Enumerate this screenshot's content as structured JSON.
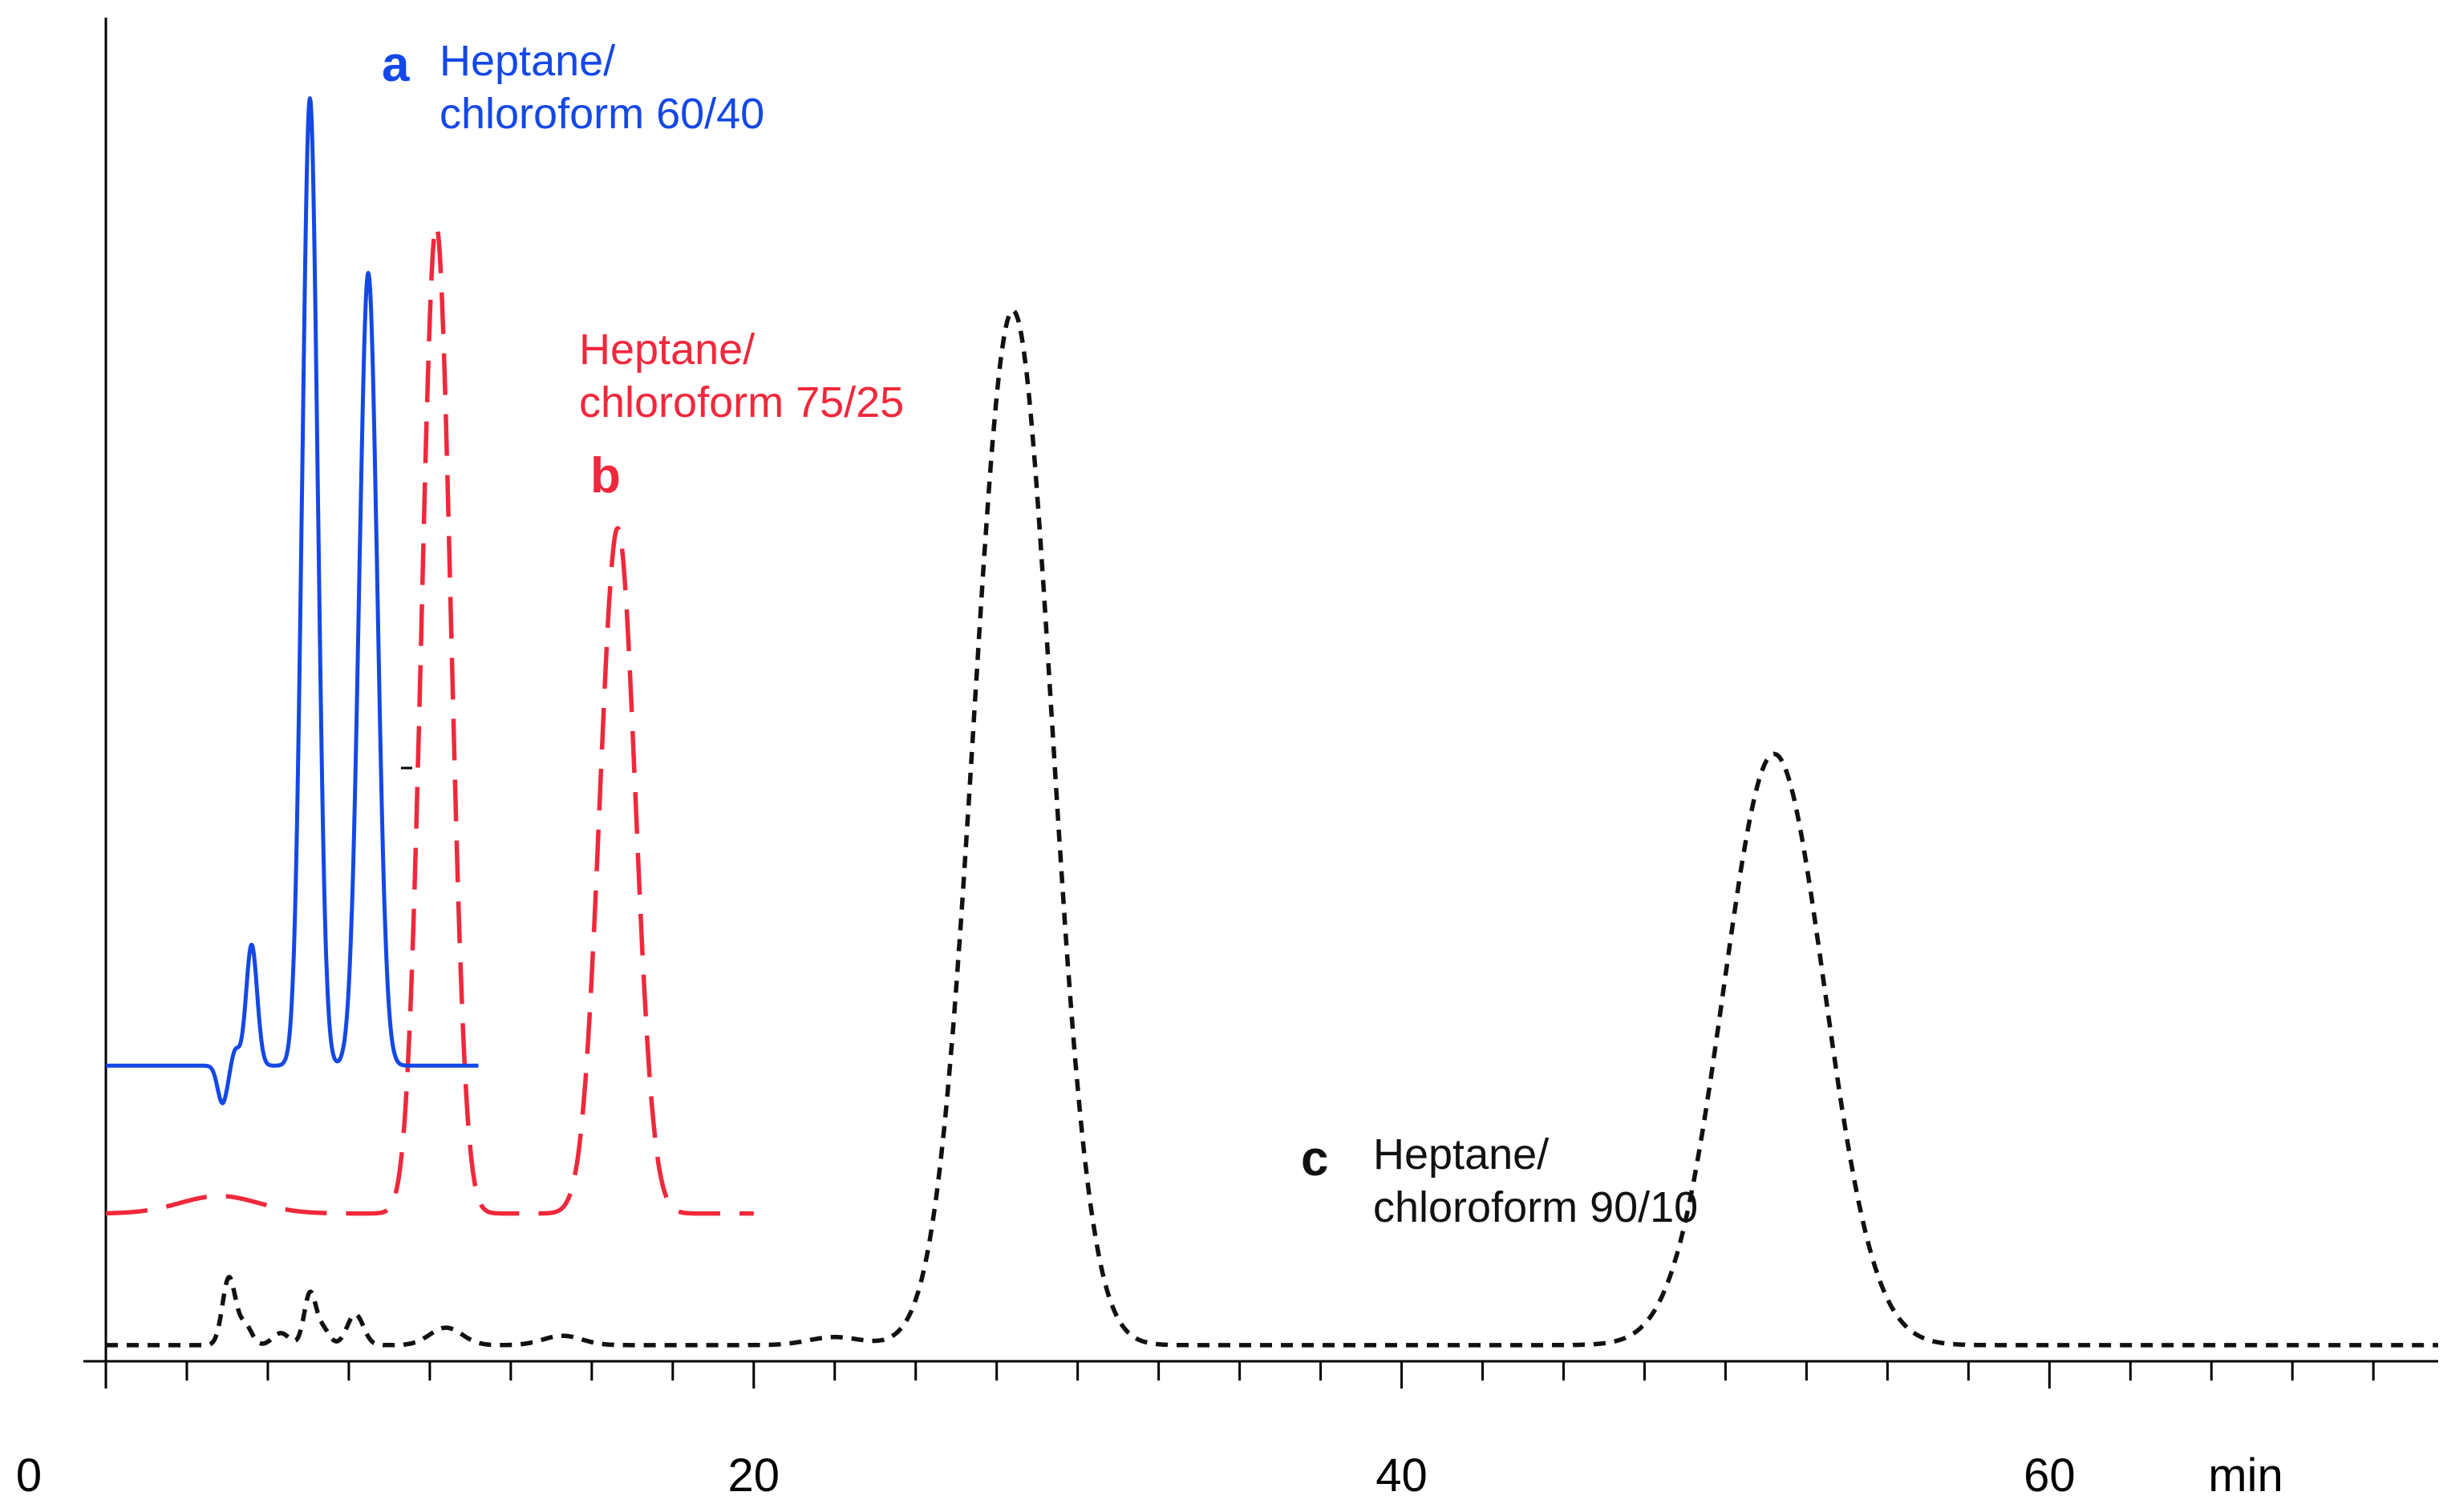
{
  "chart_data": {
    "type": "line",
    "title": "",
    "xlabel": "min",
    "ylabel": "",
    "xlim": [
      0,
      72
    ],
    "xticks": [
      {
        "value": 0,
        "label": "0"
      },
      {
        "value": 20,
        "label": "20"
      },
      {
        "value": 40,
        "label": "40"
      },
      {
        "value": 60,
        "label": "60"
      }
    ],
    "minor_tick_step": 2.5,
    "ylim": [
      0,
      100
    ],
    "grid": false,
    "series": [
      {
        "id": "a",
        "letter": "a",
        "name_line1": "Heptane/",
        "name_line2": "chloroform 60/40",
        "color": "#1448e6",
        "style": "solid",
        "x_range": [
          0,
          11.5
        ],
        "baseline": 22,
        "peaks": [
          {
            "t": 3.6,
            "h": -2.8,
            "w": 0.15
          },
          {
            "t": 4.0,
            "h": 1.2,
            "w": 0.12
          },
          {
            "t": 4.5,
            "h": 9.0,
            "w": 0.17
          },
          {
            "t": 6.3,
            "h": 72.0,
            "w": 0.24
          },
          {
            "t": 8.1,
            "h": 59.0,
            "w": 0.28
          }
        ]
      },
      {
        "id": "b",
        "letter": "b",
        "name_line1": "Heptane/",
        "name_line2": "chloroform 75/25",
        "color": "#f0283c",
        "style": "dashed",
        "x_range": [
          0,
          20
        ],
        "baseline": 11,
        "peaks": [
          {
            "t": 3.5,
            "h": 1.3,
            "w": 1.2
          },
          {
            "t": 10.2,
            "h": 73.5,
            "w": 0.45
          },
          {
            "t": 15.8,
            "h": 51.0,
            "w": 0.55
          }
        ]
      },
      {
        "id": "c",
        "letter": "c",
        "name_line1": "Heptane/",
        "name_line2": "chloroform 90/10",
        "color": "#111111",
        "style": "dotted",
        "x_range": [
          0,
          72
        ],
        "baseline": 1.2,
        "peaks": [
          {
            "t": 3.8,
            "h": 5.0,
            "w": 0.2
          },
          {
            "t": 4.3,
            "h": 1.5,
            "w": 0.2
          },
          {
            "t": 5.4,
            "h": 0.9,
            "w": 0.25
          },
          {
            "t": 6.3,
            "h": 3.8,
            "w": 0.18
          },
          {
            "t": 6.7,
            "h": 1.2,
            "w": 0.2
          },
          {
            "t": 7.7,
            "h": 2.3,
            "w": 0.25
          },
          {
            "t": 10.5,
            "h": 1.3,
            "w": 0.5
          },
          {
            "t": 14.1,
            "h": 0.7,
            "w": 0.6
          },
          {
            "t": 22.5,
            "h": 0.6,
            "w": 0.8
          },
          {
            "t": 28.0,
            "h": 77.0,
            "w": 1.2
          },
          {
            "t": 51.5,
            "h": 44.0,
            "w": 1.55
          }
        ]
      }
    ]
  }
}
